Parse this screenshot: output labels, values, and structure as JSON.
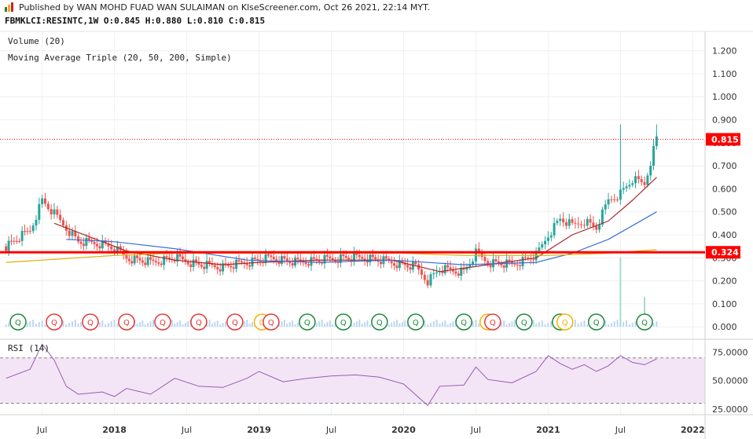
{
  "header": {
    "published_line": "Published by WAN MOHD FUAD WAN SULAIMAN on KlseScreener.com, Oct 26 2021, 22:14 MYT.",
    "symbol_line": "FBMKLCI:RESINTC,1W  O:0.845 H:0.880 L:0.810 C:0.815"
  },
  "legends": {
    "volume": "Volume (20)",
    "moving_average": "Moving Average Triple (20, 50, 200, Simple)",
    "rsi": "RSI (14)"
  },
  "colors": {
    "price_line": "#ff0000",
    "ma20": "#a52a2a",
    "ma50": "#3a6fd8",
    "ma200": "#e0b000",
    "candle_up": "#26a69a",
    "candle_down": "#ef5350",
    "rsi_line": "#9b59b6",
    "rsi_band": "#f3e5f5"
  },
  "chart_data": [
    {
      "type": "candlestick",
      "name": "RESINTC weekly price",
      "x_axis": {
        "ticks": [
          "Jul",
          "2018",
          "Jul",
          "2019",
          "Jul",
          "2020",
          "Jul",
          "2021",
          "Jul",
          "2022"
        ],
        "range": [
          "2017-04",
          "2022-02"
        ]
      },
      "y_axis": {
        "ticks": [
          "0.000",
          "0.100",
          "0.200",
          "0.300",
          "0.400",
          "0.500",
          "0.600",
          "0.700",
          "0.800",
          "0.900",
          "1.000",
          "1.100",
          "1.200"
        ],
        "range": [
          -0.02,
          1.25
        ]
      },
      "last_close": 0.815,
      "last_close_label": "0.815",
      "horizontal_line": 0.324,
      "horizontal_line_label": "0.324",
      "ohlc_last": {
        "open": 0.845,
        "high": 0.88,
        "low": 0.81,
        "close": 0.815
      },
      "approx_path_close": [
        [
          "2017-04",
          0.35
        ],
        [
          "2017-06",
          0.42
        ],
        [
          "2017-07",
          0.55
        ],
        [
          "2017-08",
          0.49
        ],
        [
          "2017-09",
          0.43
        ],
        [
          "2017-10",
          0.37
        ],
        [
          "2017-12",
          0.36
        ],
        [
          "2018-01",
          0.34
        ],
        [
          "2018-02",
          0.3
        ],
        [
          "2018-04",
          0.28
        ],
        [
          "2018-06",
          0.3
        ],
        [
          "2018-08",
          0.27
        ],
        [
          "2018-10",
          0.26
        ],
        [
          "2018-12",
          0.28
        ],
        [
          "2019-02",
          0.3
        ],
        [
          "2019-04",
          0.28
        ],
        [
          "2019-06",
          0.29
        ],
        [
          "2019-08",
          0.3
        ],
        [
          "2019-10",
          0.3
        ],
        [
          "2019-12",
          0.28
        ],
        [
          "2020-02",
          0.26
        ],
        [
          "2020-03",
          0.2
        ],
        [
          "2020-04",
          0.25
        ],
        [
          "2020-06",
          0.24
        ],
        [
          "2020-07",
          0.32
        ],
        [
          "2020-08",
          0.28
        ],
        [
          "2020-10",
          0.27
        ],
        [
          "2020-12",
          0.31
        ],
        [
          "2021-01",
          0.4
        ],
        [
          "2021-02",
          0.47
        ],
        [
          "2021-03",
          0.44
        ],
        [
          "2021-04",
          0.46
        ],
        [
          "2021-05",
          0.43
        ],
        [
          "2021-06",
          0.55
        ],
        [
          "2021-07",
          0.58
        ],
        [
          "2021-08",
          0.64
        ],
        [
          "2021-09",
          0.62
        ],
        [
          "2021-10",
          0.82
        ]
      ],
      "moving_averages": [
        {
          "name": "MA20",
          "points": [
            [
              "2017-08",
              0.45
            ],
            [
              "2017-11",
              0.39
            ],
            [
              "2018-02",
              0.33
            ],
            [
              "2018-06",
              0.29
            ],
            [
              "2018-10",
              0.27
            ],
            [
              "2019-01",
              0.28
            ],
            [
              "2019-06",
              0.29
            ],
            [
              "2019-12",
              0.29
            ],
            [
              "2020-04",
              0.24
            ],
            [
              "2020-08",
              0.27
            ],
            [
              "2020-12",
              0.3
            ],
            [
              "2021-03",
              0.4
            ],
            [
              "2021-06",
              0.46
            ],
            [
              "2021-08",
              0.55
            ],
            [
              "2021-10",
              0.65
            ]
          ]
        },
        {
          "name": "MA50",
          "points": [
            [
              "2017-09",
              0.38
            ],
            [
              "2018-01",
              0.37
            ],
            [
              "2018-06",
              0.34
            ],
            [
              "2018-12",
              0.29
            ],
            [
              "2019-06",
              0.28
            ],
            [
              "2019-12",
              0.29
            ],
            [
              "2020-06",
              0.27
            ],
            [
              "2020-12",
              0.28
            ],
            [
              "2021-03",
              0.32
            ],
            [
              "2021-06",
              0.38
            ],
            [
              "2021-08",
              0.44
            ],
            [
              "2021-10",
              0.5
            ]
          ]
        },
        {
          "name": "MA200",
          "points": [
            [
              "2017-04",
              0.28
            ],
            [
              "2018-01",
              0.31
            ],
            [
              "2018-06",
              0.32
            ],
            [
              "2019-01",
              0.32
            ],
            [
              "2019-06",
              0.32
            ],
            [
              "2020-01",
              0.32
            ],
            [
              "2020-06",
              0.31
            ],
            [
              "2021-01",
              0.31
            ],
            [
              "2021-06",
              0.32
            ],
            [
              "2021-10",
              0.335
            ]
          ]
        }
      ],
      "earnings_markers": [
        {
          "date": "2017-05",
          "label": "Q",
          "result": "up"
        },
        {
          "date": "2017-08",
          "label": "Q",
          "result": "down"
        },
        {
          "date": "2017-11",
          "label": "Q",
          "result": "down"
        },
        {
          "date": "2018-02",
          "label": "Q",
          "result": "down"
        },
        {
          "date": "2018-05",
          "label": "Q",
          "result": "down"
        },
        {
          "date": "2018-08",
          "label": "Q",
          "result": "down"
        },
        {
          "date": "2018-11",
          "label": "Q",
          "result": "down"
        },
        {
          "date": "2019-01",
          "label": "Q",
          "result": "future"
        },
        {
          "date": "2019-02",
          "label": "Q",
          "result": "down"
        },
        {
          "date": "2019-05",
          "label": "Q",
          "result": "up"
        },
        {
          "date": "2019-08",
          "label": "Q",
          "result": "up"
        },
        {
          "date": "2019-11",
          "label": "Q",
          "result": "up"
        },
        {
          "date": "2020-02",
          "label": "Q",
          "result": "up"
        },
        {
          "date": "2020-06",
          "label": "Q",
          "result": "up"
        },
        {
          "date": "2020-08",
          "label": "Q",
          "result": "future"
        },
        {
          "date": "2020-08",
          "label": "Q",
          "result": "down"
        },
        {
          "date": "2020-11",
          "label": "Q",
          "result": "up"
        },
        {
          "date": "2021-02",
          "label": "Q",
          "result": "up"
        },
        {
          "date": "2021-02",
          "label": "Q",
          "result": "future"
        },
        {
          "date": "2021-05",
          "label": "Q",
          "result": "up"
        },
        {
          "date": "2021-09",
          "label": "Q",
          "result": "up"
        }
      ],
      "volume_spikes": [
        [
          "2021-07",
          0.3
        ],
        [
          "2021-09",
          0.13
        ]
      ]
    },
    {
      "type": "line",
      "name": "RSI (14)",
      "y_axis": {
        "ticks": [
          "25.0000",
          "50.0000",
          "75.0000"
        ],
        "range": [
          20,
          85
        ]
      },
      "bands": [
        30,
        70
      ],
      "points": [
        [
          "2017-04",
          52
        ],
        [
          "2017-06",
          60
        ],
        [
          "2017-07",
          82
        ],
        [
          "2017-08",
          68
        ],
        [
          "2017-09",
          45
        ],
        [
          "2017-10",
          38
        ],
        [
          "2017-12",
          40
        ],
        [
          "2018-01",
          36
        ],
        [
          "2018-02",
          43
        ],
        [
          "2018-04",
          38
        ],
        [
          "2018-06",
          52
        ],
        [
          "2018-08",
          45
        ],
        [
          "2018-10",
          44
        ],
        [
          "2018-12",
          52
        ],
        [
          "2019-01",
          58
        ],
        [
          "2019-03",
          49
        ],
        [
          "2019-05",
          52
        ],
        [
          "2019-07",
          54
        ],
        [
          "2019-09",
          55
        ],
        [
          "2019-11",
          53
        ],
        [
          "2020-01",
          47
        ],
        [
          "2020-03",
          28
        ],
        [
          "2020-04",
          45
        ],
        [
          "2020-06",
          46
        ],
        [
          "2020-07",
          62
        ],
        [
          "2020-08",
          51
        ],
        [
          "2020-10",
          48
        ],
        [
          "2020-12",
          58
        ],
        [
          "2021-01",
          72
        ],
        [
          "2021-02",
          65
        ],
        [
          "2021-03",
          60
        ],
        [
          "2021-04",
          64
        ],
        [
          "2021-05",
          58
        ],
        [
          "2021-06",
          63
        ],
        [
          "2021-07",
          72
        ],
        [
          "2021-08",
          66
        ],
        [
          "2021-09",
          64
        ],
        [
          "2021-10",
          69
        ]
      ]
    }
  ]
}
